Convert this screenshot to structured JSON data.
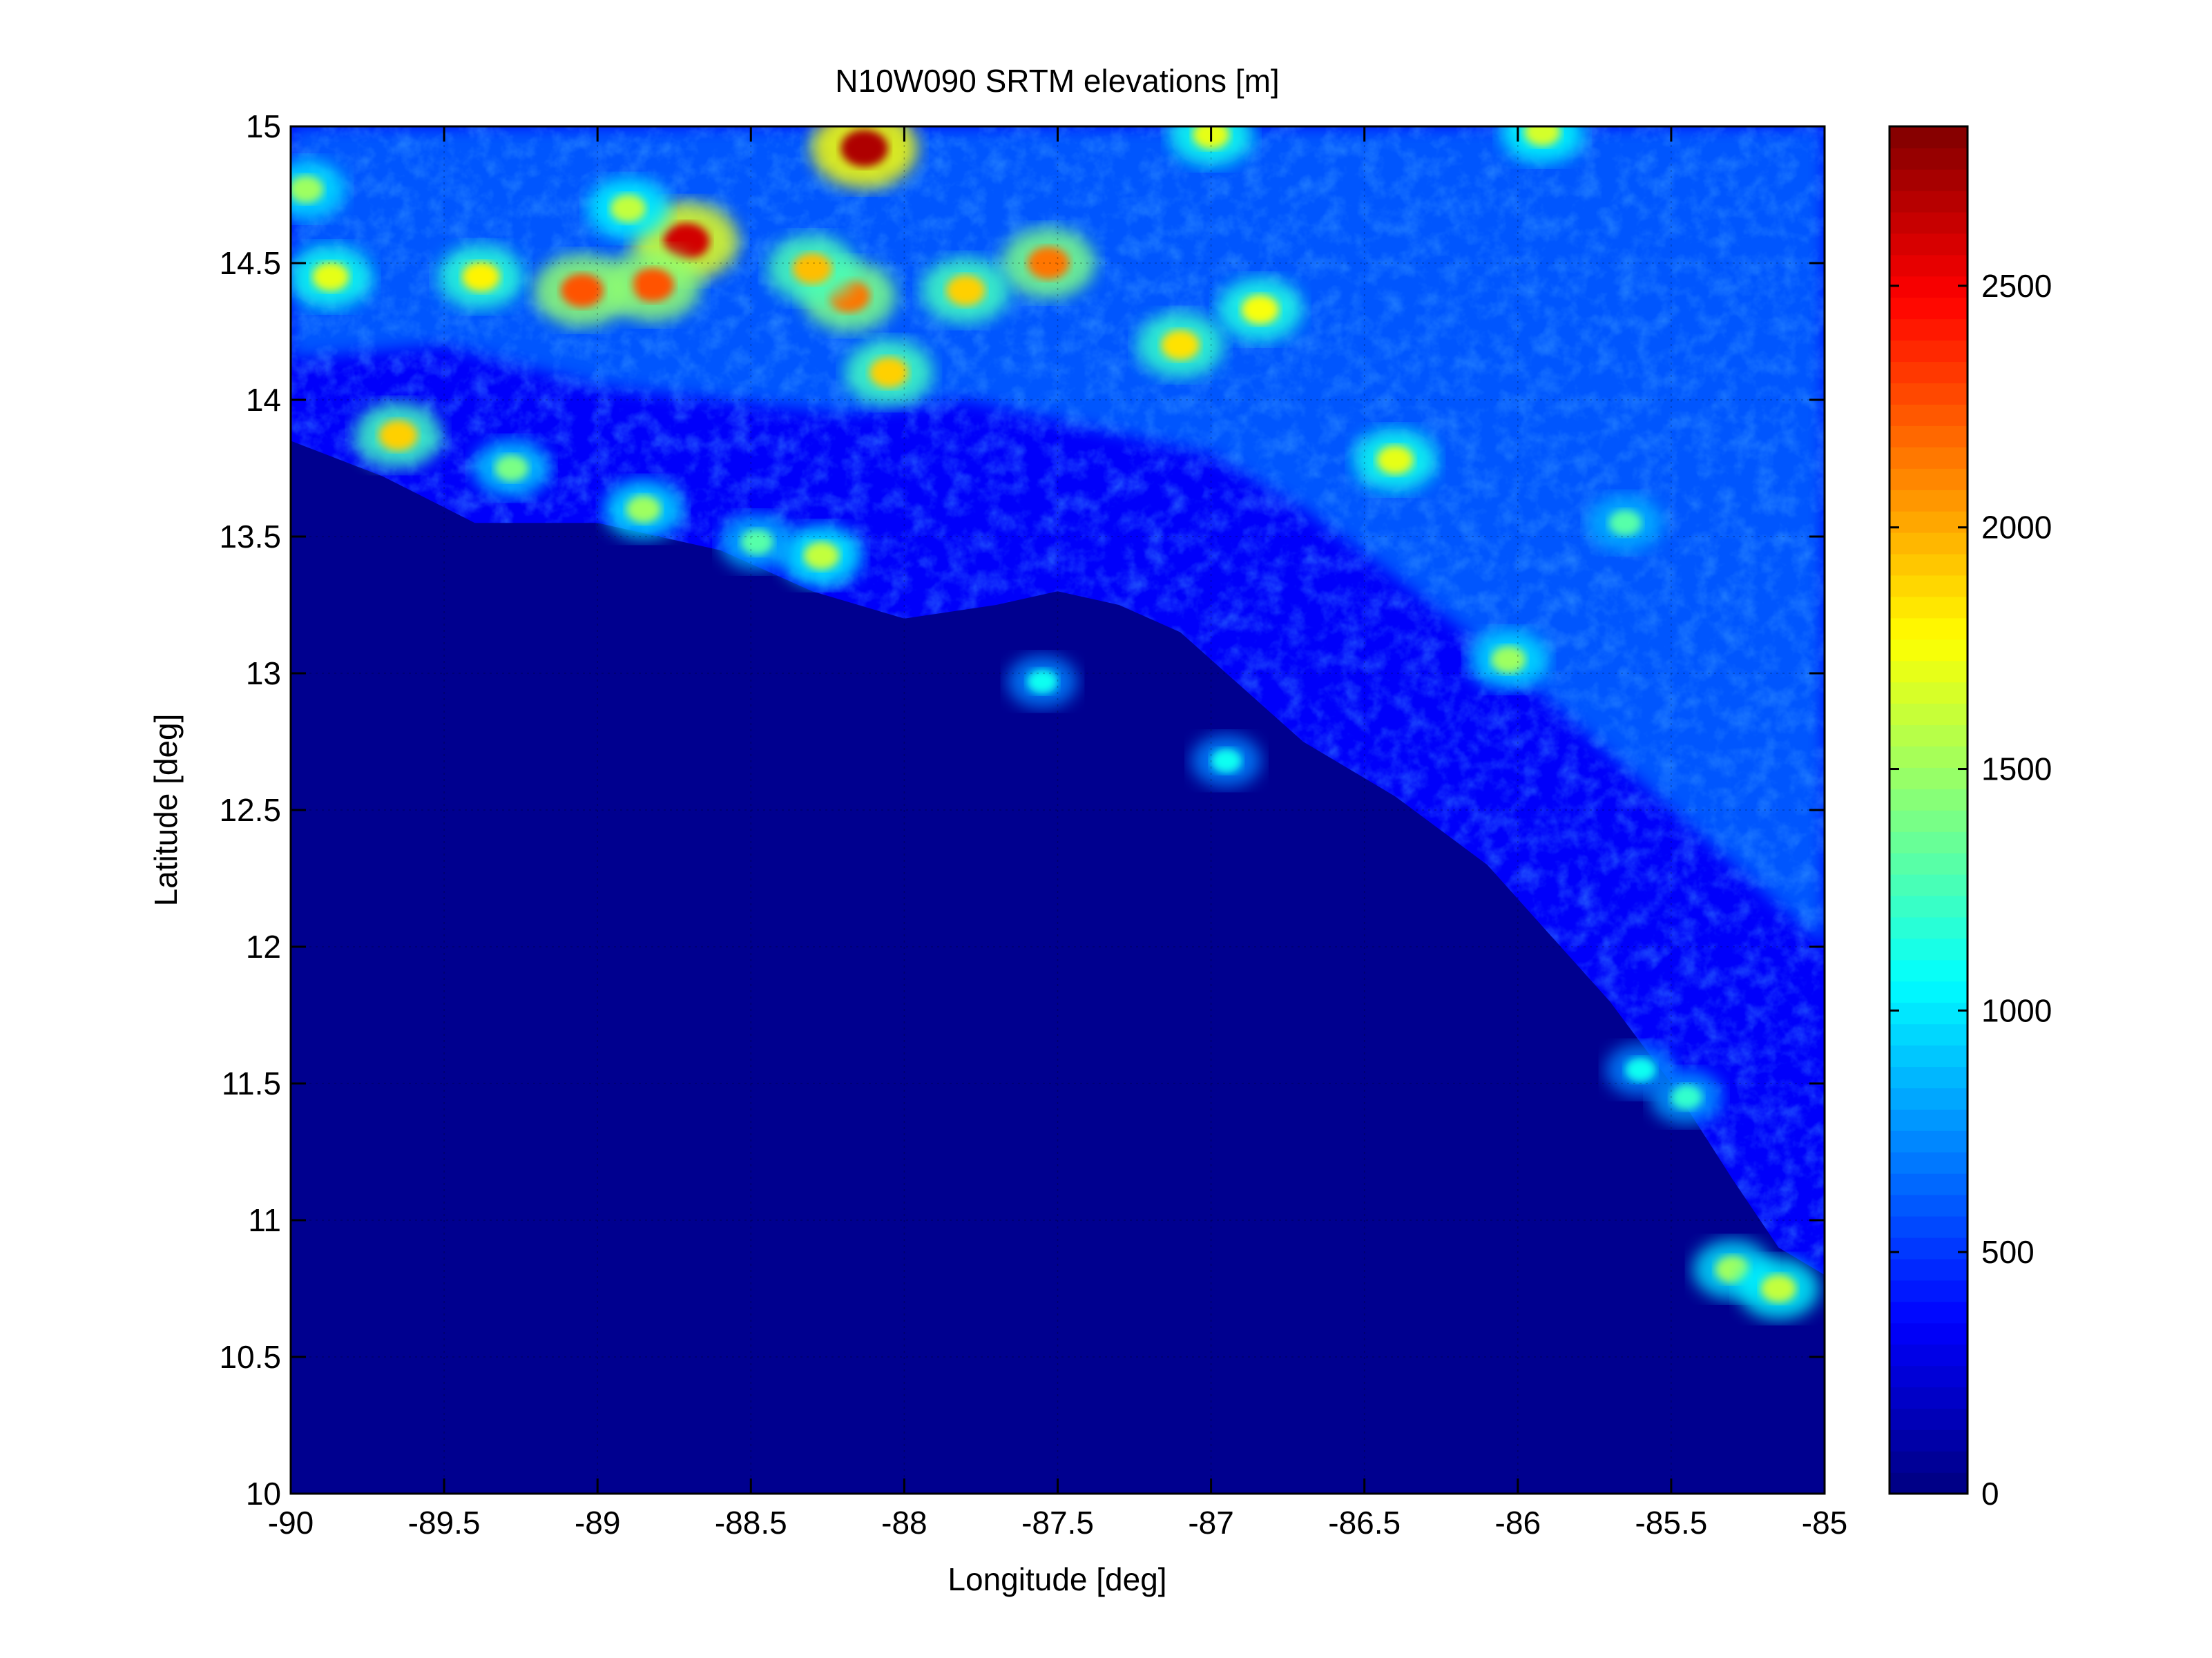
{
  "chart_data": {
    "type": "heatmap",
    "title": "N10W090 SRTM elevations [m]",
    "xlabel": "Longitude [deg]",
    "ylabel": "Latitude [deg]",
    "xlim": [
      -90,
      -85
    ],
    "ylim": [
      10,
      15
    ],
    "xticks": [
      -90,
      -89.5,
      -89,
      -88.5,
      -88,
      -87.5,
      -87,
      -86.5,
      -86,
      -85.5,
      -85
    ],
    "yticks": [
      10,
      10.5,
      11,
      11.5,
      12,
      12.5,
      13,
      13.5,
      14,
      14.5,
      15
    ],
    "grid": true,
    "colormap": "jet",
    "colorbar": {
      "clim": [
        0,
        2830
      ],
      "ticks": [
        0,
        500,
        1000,
        1500,
        2000,
        2500
      ],
      "levels": 64
    },
    "sea_level_color": "#00008f",
    "highland_elevation_samples": [
      {
        "lon": -88.71,
        "lat": 14.58,
        "elev": 2600
      },
      {
        "lon": -88.13,
        "lat": 14.92,
        "elev": 2700
      },
      {
        "lon": -88.82,
        "lat": 14.42,
        "elev": 2250
      },
      {
        "lon": -89.05,
        "lat": 14.4,
        "elev": 2250
      },
      {
        "lon": -88.18,
        "lat": 14.38,
        "elev": 2150
      },
      {
        "lon": -87.53,
        "lat": 14.5,
        "elev": 2150
      },
      {
        "lon": -88.3,
        "lat": 14.48,
        "elev": 1950
      },
      {
        "lon": -88.05,
        "lat": 14.1,
        "elev": 1900
      },
      {
        "lon": -87.8,
        "lat": 14.4,
        "elev": 1900
      },
      {
        "lon": -89.38,
        "lat": 14.45,
        "elev": 1800
      },
      {
        "lon": -87.1,
        "lat": 14.2,
        "elev": 1850
      },
      {
        "lon": -86.84,
        "lat": 14.33,
        "elev": 1750
      },
      {
        "lon": -89.87,
        "lat": 14.45,
        "elev": 1700
      },
      {
        "lon": -88.9,
        "lat": 14.7,
        "elev": 1600
      },
      {
        "lon": -89.95,
        "lat": 14.77,
        "elev": 1500
      },
      {
        "lon": -87.0,
        "lat": 14.97,
        "elev": 1700
      },
      {
        "lon": -85.92,
        "lat": 14.98,
        "elev": 1650
      },
      {
        "lon": -89.65,
        "lat": 13.87,
        "elev": 1900
      },
      {
        "lon": -89.28,
        "lat": 13.75,
        "elev": 1400
      },
      {
        "lon": -88.85,
        "lat": 13.6,
        "elev": 1500
      },
      {
        "lon": -88.27,
        "lat": 13.43,
        "elev": 1600
      },
      {
        "lon": -86.4,
        "lat": 13.78,
        "elev": 1700
      },
      {
        "lon": -86.03,
        "lat": 13.05,
        "elev": 1500
      },
      {
        "lon": -85.65,
        "lat": 13.55,
        "elev": 1300
      },
      {
        "lon": -85.3,
        "lat": 10.82,
        "elev": 1500
      },
      {
        "lon": -85.15,
        "lat": 10.75,
        "elev": 1600
      },
      {
        "lon": -85.45,
        "lat": 11.45,
        "elev": 1200
      },
      {
        "lon": -85.6,
        "lat": 11.55,
        "elev": 1100
      },
      {
        "lon": -86.95,
        "lat": 12.68,
        "elev": 1100
      },
      {
        "lon": -87.55,
        "lat": 12.97,
        "elev": 1100
      },
      {
        "lon": -88.48,
        "lat": 13.48,
        "elev": 1300
      }
    ]
  }
}
